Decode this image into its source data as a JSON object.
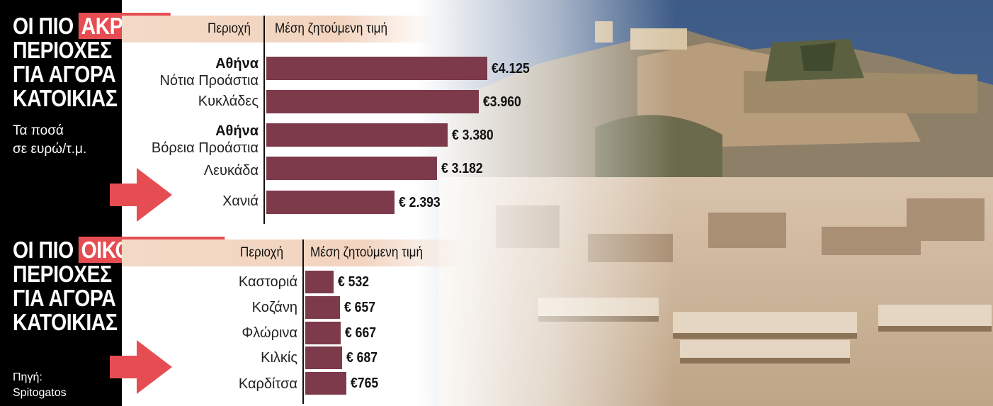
{
  "colors": {
    "bar": "#7d3a4a",
    "highlight": "#e64d52",
    "header_bg": "#f2d4bf",
    "panel": "#000000"
  },
  "top": {
    "title_line1_pre": "ΟΙ ΠΙΟ",
    "title_line1_hl": "ΑΚΡΙΒΕΣ",
    "title_line2": "ΠΕΡΙΟΧΕΣ",
    "title_line3": "ΓΙΑ ΑΓΟΡΑ",
    "title_line4": "ΚΑΤΟΙΚΙΑΣ",
    "subtitle_line1": "Τα ποσά",
    "subtitle_line2": "σε ευρώ/τ.μ.",
    "col_area": "Περιοχή",
    "col_price": "Μέση ζητούμενη τιμή"
  },
  "bottom": {
    "title_line1_pre": "ΟΙ ΠΙΟ",
    "title_line1_hl": "ΟΙΚΟΝΟΜΙΚΕΣ",
    "title_line2": "ΠΕΡΙΟΧΕΣ",
    "title_line3": "ΓΙΑ ΑΓΟΡΑ",
    "title_line4": "ΚΑΤΟΙΚΙΑΣ",
    "col_area": "Περιοχή",
    "col_price": "Μέση ζητούμενη τιμή",
    "source_line1": "Πηγή:",
    "source_line2": "Spitogatos"
  },
  "chart_data": [
    {
      "type": "bar",
      "title": "ΟΙ ΠΙΟ ΑΚΡΙΒΕΣ ΠΕΡΙΟΧΕΣ ΓΙΑ ΑΓΟΡΑ ΚΑΤΟΙΚΙΑΣ",
      "subtitle": "Τα ποσά σε ευρώ/τ.μ.",
      "xlabel": "Περιοχή",
      "ylabel": "Μέση ζητούμενη τιμή",
      "categories": [
        {
          "bold": "Αθήνα",
          "name": "Νότια Προάστια"
        },
        {
          "bold": "",
          "name": "Κυκλάδες"
        },
        {
          "bold": "Αθήνα",
          "name": "Βόρεια Προάστια"
        },
        {
          "bold": "",
          "name": "Λευκάδα"
        },
        {
          "bold": "",
          "name": "Χανιά"
        }
      ],
      "values": [
        4125,
        3960,
        3380,
        3182,
        2393
      ],
      "labels": [
        "€4.125",
        "€3.960",
        "€ 3.380",
        "€ 3.182",
        "€ 2.393"
      ]
    },
    {
      "type": "bar",
      "title": "ΟΙ ΠΙΟ ΟΙΚΟΝΟΜΙΚΕΣ ΠΕΡΙΟΧΕΣ ΓΙΑ ΑΓΟΡΑ ΚΑΤΟΙΚΙΑΣ",
      "xlabel": "Περιοχή",
      "ylabel": "Μέση ζητούμενη τιμή",
      "categories": [
        {
          "bold": "",
          "name": "Καστοριά"
        },
        {
          "bold": "",
          "name": "Κοζάνη"
        },
        {
          "bold": "",
          "name": "Φλώρινα"
        },
        {
          "bold": "",
          "name": "Κιλκίς"
        },
        {
          "bold": "",
          "name": "Καρδίτσα"
        }
      ],
      "values": [
        532,
        657,
        667,
        687,
        765
      ],
      "labels": [
        "€ 532",
        "€ 657",
        "€ 667",
        "€ 687",
        "€765"
      ]
    }
  ]
}
